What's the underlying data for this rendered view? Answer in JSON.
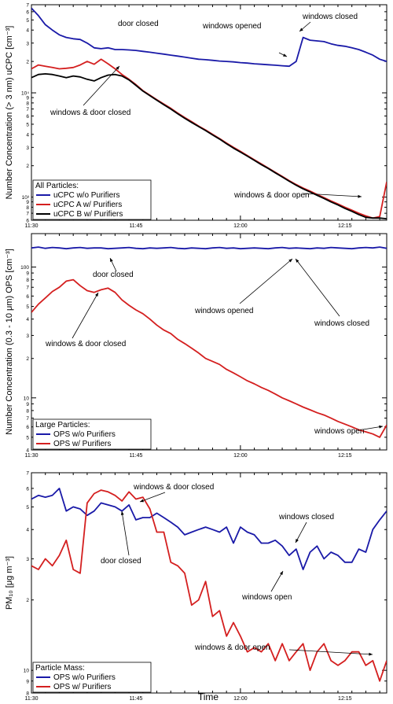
{
  "figure": {
    "xlabel": "Time",
    "x_ticks": [
      "11:30",
      "11:45",
      "12:00",
      "12:15"
    ]
  },
  "chart_data": [
    {
      "type": "line",
      "ylabel": "Number Concentration (> 3 nm) uCPC [cm⁻³]",
      "yscale": "log",
      "ylim": [
        600,
        70000
      ],
      "xlim": [
        "11:30",
        "12:21"
      ],
      "x": [
        0,
        2,
        4,
        6,
        8,
        10,
        12,
        14,
        16,
        18,
        20,
        22,
        24,
        26,
        28,
        30,
        32,
        34,
        36,
        38,
        40,
        42,
        44,
        46,
        48,
        50,
        51
      ],
      "tick_labels": [
        {
          "v": 70000,
          "t": "7"
        },
        {
          "v": 60000,
          "t": "6"
        },
        {
          "v": 50000,
          "t": "5"
        },
        {
          "v": 40000,
          "t": "4"
        },
        {
          "v": 30000,
          "t": "3"
        },
        {
          "v": 20000,
          "t": "2"
        },
        {
          "v": 10000,
          "t": "10⁴"
        },
        {
          "v": 9000,
          "t": "9"
        },
        {
          "v": 8000,
          "t": "8"
        },
        {
          "v": 7000,
          "t": "7"
        },
        {
          "v": 6000,
          "t": "6"
        },
        {
          "v": 5000,
          "t": "5"
        },
        {
          "v": 4000,
          "t": "4"
        },
        {
          "v": 3000,
          "t": "3"
        },
        {
          "v": 2000,
          "t": "2"
        },
        {
          "v": 1000,
          "t": "10³"
        },
        {
          "v": 900,
          "t": "9"
        },
        {
          "v": 800,
          "t": "8"
        },
        {
          "v": 700,
          "t": "7"
        },
        {
          "v": 600,
          "t": "6"
        }
      ],
      "legend_title": "All Particles:",
      "legend_position": "bottom-left",
      "series": [
        {
          "name": "uCPC w/o Purifiers",
          "color": "#1a1aa8",
          "x": [
            0,
            1,
            2,
            3,
            4,
            5,
            6,
            7,
            8,
            9,
            10,
            11,
            12,
            13,
            14,
            15,
            16,
            17,
            18,
            19,
            20,
            21,
            22,
            23,
            24,
            25,
            26,
            27,
            28,
            29,
            30,
            31,
            32,
            33,
            34,
            35,
            36,
            37,
            38,
            39,
            40,
            41,
            42,
            43,
            44,
            45,
            46,
            47,
            48,
            49,
            50,
            51
          ],
          "y": [
            65000,
            55000,
            45000,
            40000,
            36000,
            34000,
            33000,
            32500,
            30000,
            27000,
            26500,
            27000,
            26000,
            26000,
            25800,
            25500,
            25000,
            24500,
            24000,
            23500,
            23000,
            22500,
            22000,
            21500,
            21000,
            20800,
            20500,
            20200,
            20000,
            19800,
            19500,
            19300,
            19000,
            18800,
            18600,
            18400,
            18200,
            18000,
            20000,
            34000,
            32000,
            31500,
            31000,
            29500,
            28500,
            28000,
            27000,
            26000,
            24500,
            23000,
            21000,
            20000
          ]
        },
        {
          "name": "uCPC A  w/ Purifiers",
          "color": "#d41f1f",
          "x": [
            0,
            1,
            2,
            3,
            4,
            5,
            6,
            7,
            8,
            9,
            10,
            11,
            12,
            13,
            14,
            15,
            16,
            17,
            18,
            19,
            20,
            21,
            22,
            23,
            24,
            25,
            26,
            27,
            28,
            29,
            30,
            31,
            32,
            33,
            34,
            35,
            36,
            37,
            38,
            39,
            40,
            41,
            42,
            43,
            44,
            45,
            46,
            47,
            48,
            49,
            50,
            51
          ],
          "y": [
            17000,
            18500,
            18000,
            17500,
            17000,
            17200,
            17500,
            18500,
            20000,
            18800,
            21000,
            19000,
            17000,
            15000,
            13500,
            12000,
            10500,
            9500,
            8600,
            7800,
            7100,
            6400,
            5800,
            5300,
            4800,
            4400,
            4000,
            3650,
            3300,
            3000,
            2750,
            2500,
            2280,
            2080,
            1900,
            1730,
            1580,
            1440,
            1320,
            1220,
            1140,
            1060,
            990,
            920,
            860,
            800,
            750,
            700,
            660,
            630,
            650,
            1400
          ]
        },
        {
          "name": "uCPC B w/ Purifiers",
          "color": "#000000",
          "x": [
            0,
            1,
            2,
            3,
            4,
            5,
            6,
            7,
            8,
            9,
            10,
            11,
            12,
            13,
            14,
            15,
            16,
            17,
            18,
            19,
            20,
            21,
            22,
            23,
            24,
            25,
            26,
            27,
            28,
            29,
            30,
            31,
            32,
            33,
            34,
            35,
            36,
            37,
            38,
            39,
            40,
            41,
            42,
            43,
            44,
            45,
            46,
            47,
            48,
            49,
            50,
            51
          ],
          "y": [
            14000,
            15000,
            15200,
            15000,
            14500,
            14000,
            14500,
            14200,
            13500,
            13000,
            14000,
            14800,
            15000,
            14500,
            13300,
            11800,
            10400,
            9400,
            8500,
            7700,
            7000,
            6300,
            5700,
            5200,
            4750,
            4350,
            3950,
            3600,
            3250,
            2950,
            2700,
            2470,
            2250,
            2050,
            1880,
            1710,
            1560,
            1420,
            1300,
            1200,
            1120,
            1040,
            970,
            900,
            840,
            780,
            730,
            680,
            640,
            630,
            630,
            620
          ]
        }
      ],
      "annotations": [
        "door closed",
        "windows opened",
        "windows closed",
        "windows & door closed",
        "windows & door open"
      ]
    },
    {
      "type": "line",
      "ylabel": "Number Concentration (0.3 - 10 μm) OPS [cm⁻³]",
      "yscale": "log",
      "ylim": [
        4,
        180
      ],
      "xlim": [
        "11:30",
        "12:21"
      ],
      "x": [
        0,
        2,
        4,
        6,
        8,
        10,
        12,
        14,
        16,
        18,
        20,
        22,
        24,
        26,
        28,
        30,
        32,
        34,
        36,
        38,
        40,
        42,
        44,
        46,
        48,
        50,
        51
      ],
      "tick_labels": [
        {
          "v": 100,
          "t": "100"
        },
        {
          "v": 90,
          "t": "9"
        },
        {
          "v": 80,
          "t": "8"
        },
        {
          "v": 70,
          "t": "7"
        },
        {
          "v": 60,
          "t": "6"
        },
        {
          "v": 50,
          "t": "5"
        },
        {
          "v": 40,
          "t": "4"
        },
        {
          "v": 30,
          "t": "3"
        },
        {
          "v": 20,
          "t": "2"
        },
        {
          "v": 10,
          "t": "10"
        },
        {
          "v": 9,
          "t": "9"
        },
        {
          "v": 8,
          "t": "8"
        },
        {
          "v": 7,
          "t": "7"
        },
        {
          "v": 6,
          "t": "6"
        },
        {
          "v": 5,
          "t": "5"
        },
        {
          "v": 4,
          "t": "4"
        }
      ],
      "legend_title": "Large Particles:",
      "legend_position": "bottom-left",
      "series": [
        {
          "name": "OPS w/o Purifiers",
          "color": "#1a1aa8",
          "x": [
            0,
            1,
            2,
            3,
            4,
            5,
            6,
            7,
            8,
            9,
            10,
            11,
            12,
            13,
            14,
            15,
            16,
            17,
            18,
            19,
            20,
            21,
            22,
            23,
            24,
            25,
            26,
            27,
            28,
            29,
            30,
            31,
            32,
            33,
            34,
            35,
            36,
            37,
            38,
            39,
            40,
            41,
            42,
            43,
            44,
            45,
            46,
            47,
            48,
            49,
            50,
            51
          ],
          "y": [
            140,
            142,
            139,
            141,
            140,
            138,
            140,
            141,
            139,
            140,
            140,
            138,
            139,
            140,
            141,
            139,
            138,
            140,
            139,
            140,
            141,
            139,
            138,
            140,
            139,
            138,
            140,
            141,
            139,
            140,
            138,
            139,
            140,
            139,
            138,
            140,
            141,
            139,
            140,
            139,
            138,
            140,
            139,
            141,
            140,
            139,
            138,
            140,
            141,
            140,
            142,
            139
          ]
        },
        {
          "name": "OPS w/ Purifiers",
          "color": "#d41f1f",
          "x": [
            0,
            1,
            2,
            3,
            4,
            5,
            6,
            7,
            8,
            9,
            10,
            11,
            12,
            13,
            14,
            15,
            16,
            17,
            18,
            19,
            20,
            21,
            22,
            23,
            24,
            25,
            26,
            27,
            28,
            29,
            30,
            31,
            32,
            33,
            34,
            35,
            36,
            37,
            38,
            39,
            40,
            41,
            42,
            43,
            44,
            45,
            46,
            47,
            48,
            49,
            50,
            51
          ],
          "y": [
            45,
            52,
            58,
            65,
            70,
            78,
            80,
            72,
            66,
            64,
            67,
            69,
            64,
            56,
            51,
            47,
            44,
            40,
            36,
            33,
            31,
            28,
            26,
            24,
            22,
            20,
            19,
            18,
            16.5,
            15.5,
            14.5,
            13.5,
            12.8,
            12,
            11.4,
            10.7,
            10,
            9.5,
            9,
            8.5,
            8.1,
            7.7,
            7.4,
            7,
            6.6,
            6.3,
            6,
            5.7,
            5.5,
            5.3,
            5,
            6.2
          ]
        }
      ],
      "annotations": [
        "door closed",
        "windows opened",
        "windows closed",
        "windows & door closed",
        "windows open"
      ]
    },
    {
      "type": "line",
      "ylabel": "PM₁₀ [μg m⁻³]",
      "yscale": "log",
      "ylim": [
        8,
        70
      ],
      "xlim": [
        "11:30",
        "12:21"
      ],
      "x": [
        0,
        2,
        4,
        6,
        8,
        10,
        12,
        14,
        16,
        18,
        20,
        22,
        24,
        26,
        28,
        30,
        32,
        34,
        36,
        38,
        40,
        42,
        44,
        46,
        48,
        50,
        51
      ],
      "tick_labels": [
        {
          "v": 70,
          "t": "7"
        },
        {
          "v": 60,
          "t": "6"
        },
        {
          "v": 50,
          "t": "5"
        },
        {
          "v": 40,
          "t": "4"
        },
        {
          "v": 30,
          "t": "3"
        },
        {
          "v": 20,
          "t": "2"
        },
        {
          "v": 10,
          "t": "10"
        },
        {
          "v": 9,
          "t": "9"
        },
        {
          "v": 8,
          "t": "8"
        }
      ],
      "legend_title": "Particle Mass:",
      "legend_position": "bottom-left",
      "series": [
        {
          "name": "OPS w/o Purifiers",
          "color": "#1a1aa8",
          "x": [
            0,
            1,
            2,
            3,
            4,
            5,
            6,
            7,
            8,
            9,
            10,
            11,
            12,
            13,
            14,
            15,
            16,
            17,
            18,
            19,
            20,
            21,
            22,
            23,
            24,
            25,
            26,
            27,
            28,
            29,
            30,
            31,
            32,
            33,
            34,
            35,
            36,
            37,
            38,
            39,
            40,
            41,
            42,
            43,
            44,
            45,
            46,
            47,
            48,
            49,
            50,
            51
          ],
          "y": [
            54,
            56,
            55,
            56,
            60,
            48,
            50,
            49,
            46,
            48,
            52,
            51,
            50,
            48,
            51,
            44,
            45,
            45,
            47,
            45,
            43,
            41,
            38,
            39,
            40,
            41,
            40,
            39,
            41,
            35,
            41,
            39,
            38,
            35,
            35,
            36,
            34,
            31,
            33,
            27,
            32,
            34,
            30,
            32,
            31,
            29,
            29,
            33,
            32,
            40,
            44,
            48
          ]
        },
        {
          "name": "OPS w/ Purifiers",
          "color": "#d41f1f",
          "x": [
            0,
            1,
            2,
            3,
            4,
            5,
            6,
            7,
            8,
            9,
            10,
            11,
            12,
            13,
            14,
            15,
            16,
            17,
            18,
            19,
            20,
            21,
            22,
            23,
            24,
            25,
            26,
            27,
            28,
            29,
            30,
            31,
            32,
            33,
            34,
            35,
            36,
            37,
            38,
            39,
            40,
            41,
            42,
            43,
            44,
            45,
            46,
            47,
            48,
            49,
            50,
            51
          ],
          "y": [
            28,
            27,
            30,
            28,
            31,
            36,
            27,
            26,
            52,
            57,
            59,
            58,
            56,
            53,
            58,
            54,
            55,
            49,
            39,
            39,
            29,
            28,
            26,
            19,
            20,
            24,
            17,
            18,
            14,
            16,
            14,
            12,
            12.5,
            12,
            13,
            11,
            13,
            11,
            12,
            13,
            10,
            12,
            13,
            11,
            10.5,
            11,
            12,
            12,
            10.5,
            11,
            9,
            11
          ]
        }
      ],
      "annotations": [
        "windows & door closed",
        "door closed",
        "windows closed",
        "windows open",
        "windows & door open"
      ]
    }
  ]
}
